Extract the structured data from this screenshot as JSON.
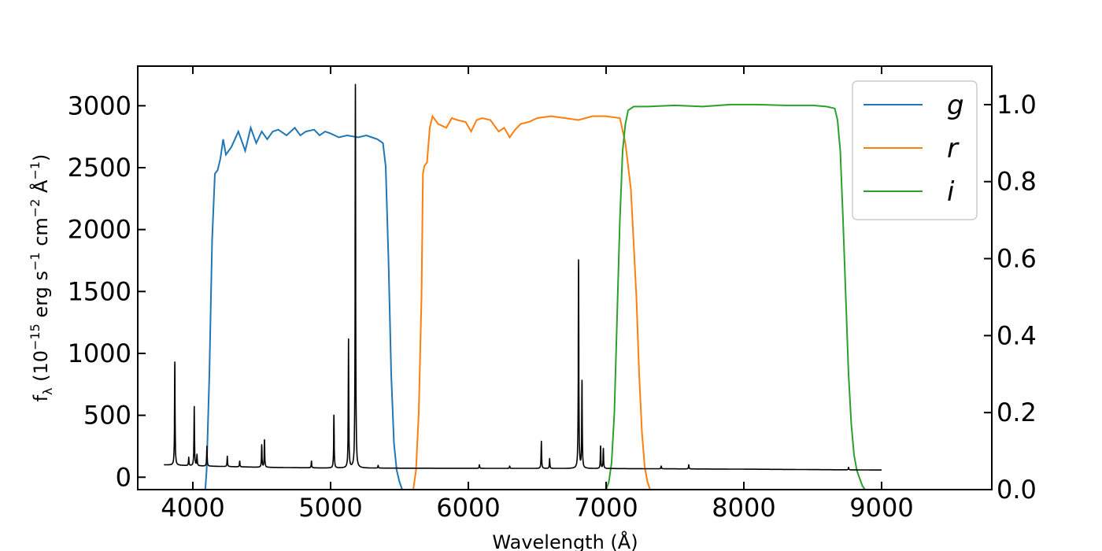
{
  "chart_data": {
    "type": "line",
    "xlabel": "Wavelength (Å)",
    "ylabel": "f_λ (10^−15 erg s^−1 cm^−2 Å^−1)",
    "ylabel_parts": {
      "f": "f",
      "lambda": "λ",
      "open": " (10",
      "exp15": "−15",
      "erg": " erg s",
      "exp1a": "−1",
      "cm": " cm",
      "exp2": "−2",
      "ang": " Å",
      "exp1b": "−1",
      "close": ")"
    },
    "xlim": [
      3600,
      9800
    ],
    "ylim_left": [
      -100,
      3320
    ],
    "ylim_right": [
      0.0,
      1.1
    ],
    "x_ticks": [
      "4000",
      "5000",
      "6000",
      "7000",
      "8000",
      "9000"
    ],
    "y_ticks_left": [
      "0",
      "500",
      "1000",
      "1500",
      "2000",
      "2500",
      "3000"
    ],
    "y_ticks_right": [
      "0.0",
      "0.2",
      "0.4",
      "0.6",
      "0.8",
      "1.0"
    ],
    "legend_position": "top-right",
    "spectrum": {
      "color": "#000000",
      "x_range": [
        3790,
        9000
      ],
      "continuum": [
        [
          3790,
          100
        ],
        [
          4000,
          92
        ],
        [
          4500,
          80
        ],
        [
          5000,
          74
        ],
        [
          6000,
          72
        ],
        [
          7000,
          70
        ],
        [
          8000,
          65
        ],
        [
          9000,
          58
        ]
      ],
      "lines": [
        {
          "x": 3869,
          "y": 930
        },
        {
          "x": 3970,
          "y": 160
        },
        {
          "x": 4010,
          "y": 570
        },
        {
          "x": 4030,
          "y": 180
        },
        {
          "x": 4102,
          "y": 250
        },
        {
          "x": 4250,
          "y": 170
        },
        {
          "x": 4340,
          "y": 130
        },
        {
          "x": 4500,
          "y": 260
        },
        {
          "x": 4520,
          "y": 300
        },
        {
          "x": 4861,
          "y": 130
        },
        {
          "x": 5024,
          "y": 500
        },
        {
          "x": 5130,
          "y": 1110
        },
        {
          "x": 5180,
          "y": 3170
        },
        {
          "x": 5345,
          "y": 95
        },
        {
          "x": 6080,
          "y": 100
        },
        {
          "x": 6300,
          "y": 90
        },
        {
          "x": 6530,
          "y": 290
        },
        {
          "x": 6590,
          "y": 150
        },
        {
          "x": 6800,
          "y": 1750
        },
        {
          "x": 6825,
          "y": 770
        },
        {
          "x": 6960,
          "y": 250
        },
        {
          "x": 6980,
          "y": 230
        },
        {
          "x": 7400,
          "y": 90
        },
        {
          "x": 7600,
          "y": 100
        },
        {
          "x": 8760,
          "y": 80
        }
      ]
    },
    "series": [
      {
        "name": "g",
        "color": "#1f77b4",
        "x": [
          4090,
          4100,
          4120,
          4140,
          4160,
          4180,
          4200,
          4220,
          4240,
          4280,
          4330,
          4380,
          4420,
          4460,
          4500,
          4540,
          4580,
          4620,
          4680,
          4740,
          4780,
          4820,
          4880,
          4920,
          4960,
          5000,
          5060,
          5120,
          5200,
          5260,
          5300,
          5340,
          5380,
          5400,
          5420,
          5440,
          5460,
          5480,
          5500,
          5520
        ],
        "values": [
          0.0,
          0.05,
          0.3,
          0.65,
          0.82,
          0.83,
          0.86,
          0.91,
          0.87,
          0.89,
          0.93,
          0.88,
          0.94,
          0.9,
          0.93,
          0.91,
          0.93,
          0.935,
          0.92,
          0.94,
          0.92,
          0.93,
          0.935,
          0.92,
          0.93,
          0.925,
          0.915,
          0.92,
          0.915,
          0.92,
          0.915,
          0.91,
          0.9,
          0.84,
          0.6,
          0.3,
          0.12,
          0.05,
          0.02,
          0.0
        ]
      },
      {
        "name": "r",
        "color": "#ff7f0e",
        "x": [
          5600,
          5620,
          5640,
          5660,
          5670,
          5680,
          5700,
          5720,
          5740,
          5780,
          5840,
          5880,
          5920,
          5980,
          6020,
          6060,
          6100,
          6160,
          6220,
          6260,
          6300,
          6340,
          6380,
          6440,
          6500,
          6600,
          6700,
          6800,
          6900,
          7000,
          7100,
          7140,
          7180,
          7220,
          7240,
          7260,
          7280,
          7300,
          7320
        ],
        "values": [
          0.0,
          0.05,
          0.2,
          0.5,
          0.82,
          0.84,
          0.85,
          0.94,
          0.97,
          0.95,
          0.94,
          0.965,
          0.96,
          0.955,
          0.93,
          0.96,
          0.965,
          0.96,
          0.93,
          0.94,
          0.915,
          0.935,
          0.95,
          0.955,
          0.965,
          0.97,
          0.965,
          0.96,
          0.97,
          0.97,
          0.965,
          0.9,
          0.78,
          0.5,
          0.3,
          0.15,
          0.06,
          0.02,
          0.0
        ]
      },
      {
        "name": "i",
        "color": "#2ca02c",
        "x": [
          7000,
          7020,
          7040,
          7060,
          7080,
          7100,
          7120,
          7140,
          7160,
          7200,
          7300,
          7500,
          7700,
          7900,
          8100,
          8300,
          8500,
          8600,
          8660,
          8680,
          8700,
          8720,
          8740,
          8760,
          8780,
          8800,
          8820,
          8840,
          8860,
          8880
        ],
        "values": [
          0.0,
          0.02,
          0.07,
          0.2,
          0.45,
          0.7,
          0.88,
          0.95,
          0.985,
          0.995,
          0.995,
          0.998,
          0.995,
          1.0,
          1.0,
          0.998,
          0.998,
          0.995,
          0.99,
          0.96,
          0.88,
          0.7,
          0.5,
          0.3,
          0.17,
          0.09,
          0.05,
          0.03,
          0.01,
          0.0
        ]
      }
    ]
  }
}
